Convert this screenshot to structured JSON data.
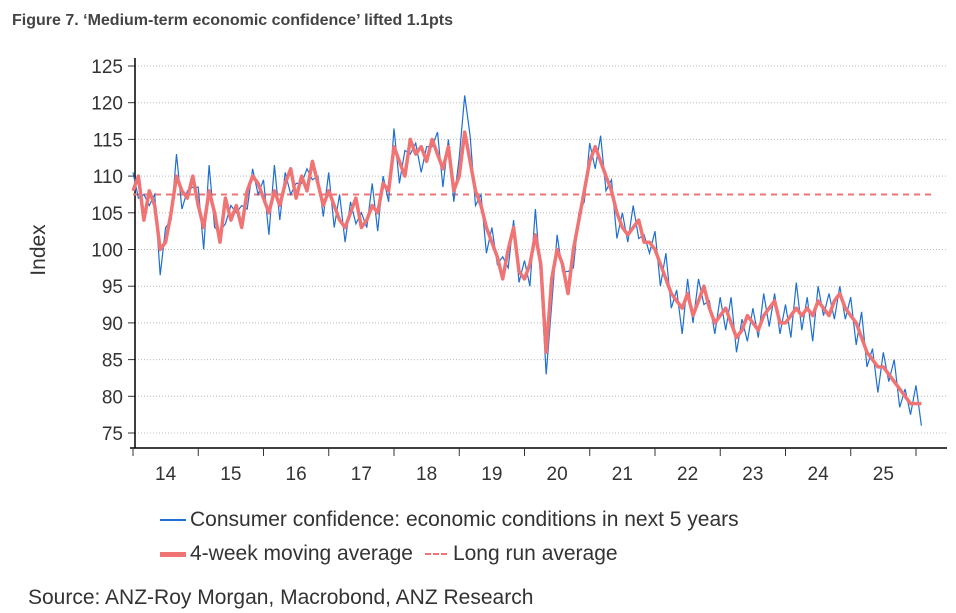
{
  "chart_data": {
    "type": "line",
    "title": "Figure 7. ‘Medium-term economic confidence’ lifted 1.1pts",
    "ylabel": "Index",
    "xlabel": "",
    "ylim": [
      75,
      125
    ],
    "yticks": [
      75,
      80,
      85,
      90,
      95,
      100,
      105,
      110,
      115,
      120,
      125
    ],
    "xticks": [
      "14",
      "15",
      "16",
      "17",
      "18",
      "19",
      "20",
      "21",
      "22",
      "23",
      "24",
      "25"
    ],
    "x_start_year": 2014,
    "x_step_years": 0.08333,
    "grid": "horizontal dotted",
    "legend_position": "bottom",
    "series": [
      {
        "name": "Consumer confidence: economic conditions in next 5 years",
        "color": "#1f6fd1",
        "values": [
          110.5,
          107,
          107.5,
          106,
          107.5,
          96.5,
          103,
          104,
          113,
          105.5,
          108,
          108.5,
          108.5,
          100,
          111.5,
          103,
          102.5,
          103.5,
          106,
          105,
          106,
          105.5,
          111,
          107.5,
          109.5,
          102,
          111.5,
          104,
          110.5,
          107.5,
          109,
          109,
          111,
          109.5,
          110,
          104.5,
          110.5,
          103,
          107.5,
          101,
          106.5,
          103.5,
          105,
          103,
          109,
          102.5,
          110,
          106.5,
          116.5,
          109,
          113.5,
          113,
          114.5,
          110.5,
          114,
          114,
          116,
          108.5,
          115,
          106.5,
          112.5,
          121,
          115.5,
          106,
          107.5,
          99.5,
          103,
          98,
          99,
          97.5,
          104,
          95.5,
          98.5,
          95,
          105.5,
          96,
          83,
          92.5,
          102,
          97,
          97,
          97.5,
          105,
          106.5,
          114.5,
          111,
          115.5,
          108,
          109.5,
          101.5,
          105,
          101,
          106,
          101.5,
          102,
          99.5,
          102.5,
          95,
          99.5,
          92,
          94.5,
          88.5,
          96,
          90,
          96,
          92.5,
          93,
          88.5,
          93.5,
          89,
          93.5,
          86,
          90.5,
          87.5,
          92,
          88,
          94,
          89.5,
          94,
          88.5,
          92.5,
          88,
          95.5,
          89,
          93.5,
          87.5,
          95,
          91,
          94,
          90.5,
          95,
          90.5,
          93.5,
          87,
          91.5,
          84,
          86.5,
          80.5,
          86,
          82,
          85,
          78.5,
          81,
          77.5,
          81.5,
          76
        ]
      },
      {
        "name": "4-week moving average",
        "color": "#f07474",
        "values": [
          108,
          110,
          104,
          108,
          106,
          100,
          101,
          105,
          110,
          108,
          107,
          110,
          106,
          103,
          108,
          105,
          101,
          107,
          104,
          106,
          103,
          108,
          110,
          109,
          107,
          105,
          108,
          106,
          109,
          111,
          107,
          110,
          108,
          112,
          109,
          106,
          108,
          106,
          104,
          103,
          105,
          107,
          103,
          104,
          106,
          105,
          109,
          108,
          114,
          112,
          110,
          115,
          113,
          114,
          112,
          115,
          113,
          111,
          114,
          108,
          110,
          116,
          112,
          108,
          106,
          103,
          101,
          99,
          96,
          100,
          103,
          97,
          96,
          98,
          102,
          98,
          86,
          96,
          100,
          98,
          94,
          100,
          104,
          108,
          112,
          114,
          112,
          110,
          108,
          105,
          103,
          102,
          103,
          104,
          101,
          101,
          100,
          98,
          96,
          94,
          93,
          92,
          94,
          91,
          93,
          95,
          92,
          90,
          91,
          92,
          90,
          88,
          89,
          91,
          90,
          89,
          91,
          92,
          93,
          90,
          90,
          91,
          92,
          91,
          92,
          91,
          93,
          92,
          91,
          93,
          94,
          92,
          91,
          90,
          88,
          86,
          85,
          84,
          84,
          83,
          82,
          81,
          80,
          79,
          79,
          79
        ]
      },
      {
        "name": "Long run average",
        "color": "#f07474",
        "style": "dashed",
        "value": 107.5
      }
    ]
  },
  "legend": {
    "item1": "Consumer confidence: economic conditions in next 5 years",
    "item2": "4-week moving average",
    "item3": "Long run average"
  },
  "source": "Source: ANZ-Roy Morgan, Macrobond, ANZ Research"
}
